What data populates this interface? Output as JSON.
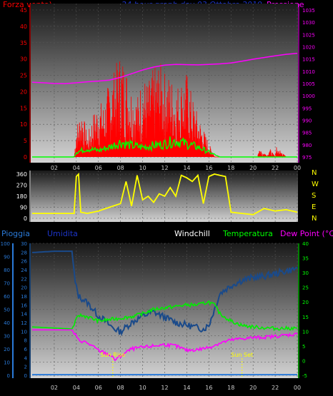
{
  "header": {
    "left_label": "Forza vento)",
    "title": "24 hour graph day  03 Ottobre 2019",
    "right_label": "Pressione"
  },
  "wind_dir_labels": [
    "N",
    "W",
    "S",
    "E",
    "N"
  ],
  "lower_header": {
    "rain": "Pioggia",
    "humidity": "Umidita",
    "windchill": "Windchill",
    "temperature": "Temperatura",
    "dewpoint": "Dew Point (°C)"
  },
  "annotations": {
    "sunrise": "Sun Rise",
    "sunset": "Sun Set"
  },
  "colors": {
    "wind": "#ff0000",
    "gust_avg": "#00ff00",
    "pressure": "#ff00ff",
    "direction": "#ffff00",
    "humidity": "#1a4a8a",
    "temperature": "#00ee00",
    "dewpoint": "#ff00ff",
    "rain": "#2a7ad8",
    "rain_axis": "#2a7ad8",
    "header_title": "#1d35c8"
  },
  "chart_data": [
    {
      "type": "line",
      "title": "24 hour graph day  03 Ottobre 2019",
      "ylabel": "Forza vento)",
      "y2label": "Pressione",
      "x_ticks": [
        "02",
        "04",
        "06",
        "08",
        "10",
        "12",
        "14",
        "16",
        "18",
        "20",
        "22",
        "00"
      ],
      "y_ticks": [
        0,
        5,
        10,
        15,
        20,
        25,
        30,
        35,
        40,
        45
      ],
      "ylim": [
        0,
        45
      ],
      "y2_ticks": [
        975,
        980,
        985,
        990,
        995,
        1000,
        1005,
        1010,
        1015,
        1020,
        1025,
        1030,
        1035
      ],
      "y2lim": [
        975,
        1035
      ],
      "series": [
        {
          "name": "Pressione",
          "axis": "right",
          "x": [
            0.0,
            1.0,
            2.0,
            3.0,
            4.0,
            5.0,
            6.0,
            7.0,
            8.0,
            9.0,
            10.0,
            11.0,
            12.0,
            13.0,
            14.0,
            15.0,
            16.0,
            17.0,
            18.0,
            19.0,
            20.0,
            21.0,
            22.0,
            23.0,
            24.0
          ],
          "values": [
            1005.5,
            1005.3,
            1005.0,
            1004.9,
            1005.3,
            1005.7,
            1006.0,
            1006.4,
            1007.5,
            1009.0,
            1010.5,
            1011.7,
            1012.5,
            1012.8,
            1012.7,
            1012.6,
            1012.8,
            1013.0,
            1013.4,
            1014.1,
            1014.9,
            1015.6,
            1016.3,
            1016.9,
            1017.3
          ]
        },
        {
          "name": "Forza vento",
          "axis": "left",
          "x": [
            0.0,
            3.8,
            4.0,
            4.5,
            5.0,
            5.5,
            6.0,
            6.5,
            7.0,
            7.5,
            8.0,
            8.5,
            9.0,
            9.5,
            10.0,
            10.5,
            11.0,
            11.5,
            12.0,
            12.5,
            13.0,
            13.5,
            14.0,
            14.5,
            15.0,
            15.5,
            16.0,
            16.5,
            20.4,
            20.5,
            21.3,
            21.4,
            22.0,
            22.1,
            23.0
          ],
          "values": [
            0,
            0,
            9,
            14,
            6,
            12,
            16,
            15,
            22,
            25,
            30,
            26,
            20,
            17,
            23,
            21,
            25,
            27,
            24,
            23,
            20,
            22,
            24,
            17,
            12,
            8,
            4,
            0,
            0,
            3,
            0,
            3,
            0,
            3,
            0
          ]
        },
        {
          "name": "Media",
          "axis": "left",
          "x": [
            0.0,
            3.8,
            4.0,
            5.0,
            6.0,
            7.0,
            8.0,
            9.0,
            10.0,
            11.0,
            12.0,
            13.0,
            14.0,
            15.0,
            16.0,
            17.0,
            24.0
          ],
          "values": [
            0,
            0,
            1.5,
            2.5,
            2,
            3,
            4.5,
            3.5,
            3,
            3.5,
            4,
            5,
            4,
            3,
            1.5,
            0,
            0
          ]
        }
      ]
    },
    {
      "type": "line",
      "ylabel": "",
      "y_ticks": [
        0,
        90,
        180,
        270,
        360
      ],
      "ylim": [
        0,
        360
      ],
      "series": [
        {
          "name": "Direzione",
          "x": [
            0.0,
            3.8,
            4.0,
            4.2,
            4.4,
            5.0,
            6.0,
            7.0,
            8.0,
            8.5,
            9.0,
            9.5,
            10.0,
            10.5,
            11.0,
            11.5,
            12.0,
            12.5,
            13.0,
            13.5,
            14.0,
            14.5,
            15.0,
            15.5,
            16.0,
            16.5,
            17.0,
            17.5,
            18.0,
            19.0,
            20.0,
            21.0,
            22.0,
            23.0,
            24.0
          ],
          "values": [
            40,
            40,
            340,
            360,
            50,
            40,
            60,
            90,
            120,
            300,
            100,
            350,
            150,
            180,
            130,
            200,
            180,
            250,
            180,
            350,
            330,
            300,
            350,
            120,
            340,
            360,
            350,
            340,
            50,
            40,
            30,
            80,
            60,
            70,
            50
          ]
        }
      ]
    },
    {
      "type": "line",
      "ylabel": "Pioggia",
      "x_ticks": [
        "02",
        "04",
        "06",
        "08",
        "10",
        "12",
        "14",
        "16",
        "18",
        "20",
        "22",
        "00"
      ],
      "y_ticks_pct": [
        0,
        10,
        20,
        30,
        40,
        50,
        60,
        70,
        80,
        90,
        100
      ],
      "y_ticks_inner": [
        0,
        2,
        4,
        6,
        8,
        10,
        12,
        14,
        16,
        18,
        20,
        22,
        24,
        26,
        28,
        30
      ],
      "y_ticks_right": [
        -5,
        0,
        5,
        10,
        15,
        20,
        25,
        30,
        35,
        40
      ],
      "ylim": [
        0,
        100
      ],
      "y2lim": [
        -5,
        40
      ],
      "series": [
        {
          "name": "Umidita",
          "axis": "left",
          "x": [
            0.0,
            2.0,
            3.6,
            3.9,
            4.2,
            5.0,
            5.5,
            6.0,
            6.5,
            7.0,
            7.5,
            8.0,
            9.0,
            10.0,
            11.0,
            12.0,
            13.0,
            14.0,
            15.0,
            15.5,
            16.0,
            16.5,
            17.0,
            18.0,
            19.0,
            20.0,
            21.0,
            22.0,
            23.0,
            24.0
          ],
          "values": [
            93,
            94,
            94,
            70,
            60,
            55,
            50,
            45,
            42,
            38,
            35,
            33,
            40,
            45,
            48,
            44,
            40,
            38,
            36,
            35,
            38,
            50,
            62,
            68,
            72,
            74,
            75,
            77,
            79,
            81
          ]
        },
        {
          "name": "Temperatura",
          "axis": "right",
          "x": [
            0.0,
            3.6,
            4.2,
            5.0,
            6.0,
            7.0,
            8.0,
            9.0,
            10.0,
            11.0,
            12.0,
            13.0,
            14.0,
            15.0,
            16.0,
            16.5,
            17.0,
            18.0,
            19.0,
            20.0,
            21.0,
            22.0,
            23.0,
            24.0
          ],
          "values": [
            11.5,
            10.8,
            15.5,
            15.0,
            13.5,
            14.0,
            14.5,
            15.0,
            16.0,
            17.5,
            18.0,
            18.5,
            19.0,
            19.0,
            20.0,
            19.0,
            16.0,
            13.5,
            12.0,
            11.5,
            11.2,
            11.0,
            11.0,
            11.0
          ]
        },
        {
          "name": "Dew Point",
          "axis": "right",
          "x": [
            0.0,
            3.6,
            4.2,
            5.0,
            6.0,
            7.0,
            7.5,
            8.0,
            9.0,
            10.0,
            11.0,
            12.0,
            13.0,
            14.0,
            15.0,
            16.0,
            17.0,
            18.0,
            19.0,
            20.0,
            21.0,
            22.0,
            23.0,
            24.0
          ],
          "values": [
            10.5,
            10.5,
            7.0,
            6.0,
            3.5,
            2.0,
            0.3,
            1.5,
            4.0,
            4.5,
            5.0,
            5.5,
            5.0,
            3.5,
            3.8,
            4.5,
            6.0,
            7.0,
            7.5,
            7.8,
            8.0,
            8.3,
            8.7,
            9.0
          ]
        },
        {
          "name": "Pioggia",
          "axis": "left",
          "x": [
            0.0,
            24.0
          ],
          "values": [
            0.5,
            0.5
          ]
        }
      ],
      "annotations": [
        {
          "label": "Sun Rise",
          "x": 7.3
        },
        {
          "label": "Sun Set",
          "x": 19.0
        }
      ]
    }
  ]
}
